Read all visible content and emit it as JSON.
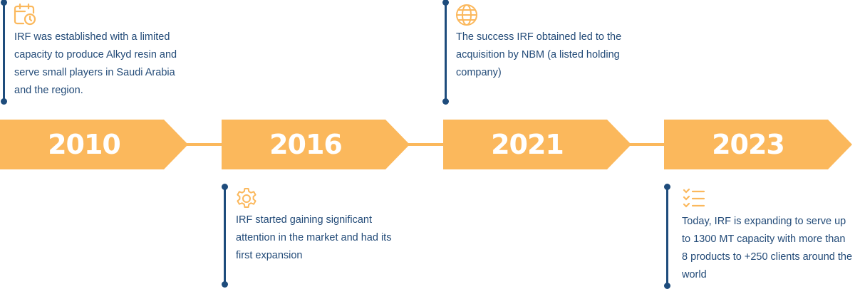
{
  "colors": {
    "accent": "#FBB85C",
    "line": "#1E4C7C",
    "text": "#234B78"
  },
  "milestones": [
    {
      "year": "2010",
      "icon": "calendar-clock-icon",
      "position": "top",
      "text": "IRF was established with a limited capacity to produce Alkyd resin and serve small players in Saudi Arabia and the region."
    },
    {
      "year": "2016",
      "icon": "gear-icon",
      "position": "bottom",
      "text": "IRF started gaining significant attention in the market and had its first expansion"
    },
    {
      "year": "2021",
      "icon": "globe-icon",
      "position": "top",
      "text": "The success IRF obtained led to the acquisition by NBM (a listed holding company)"
    },
    {
      "year": "2023",
      "icon": "checklist-icon",
      "position": "bottom",
      "text": "Today, IRF is expanding to serve up to 1300 MT capacity with more than 8 products to +250 clients around the world"
    }
  ]
}
